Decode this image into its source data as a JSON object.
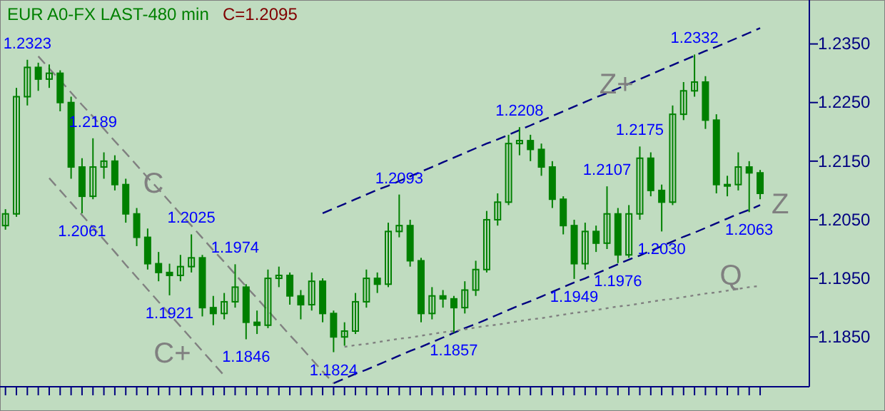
{
  "chart_data": {
    "type": "candlestick",
    "title": "EUR A0-FX LAST-480 min",
    "subtitle": "C=1.2095",
    "categories": [
      null,
      null,
      null,
      null,
      null,
      null,
      null,
      null,
      null,
      null,
      null,
      null,
      null,
      null,
      null,
      null,
      null,
      null,
      null,
      null,
      null,
      null,
      null,
      null,
      null,
      null,
      null,
      null,
      null,
      null,
      null,
      null,
      null,
      null,
      null,
      null,
      null,
      null,
      null,
      null,
      null,
      null,
      null,
      null,
      null,
      null,
      null,
      null,
      null,
      null,
      null,
      null,
      null,
      null,
      null,
      null,
      null,
      null,
      null,
      null,
      null,
      null,
      null,
      null,
      null,
      null,
      null,
      null,
      null,
      null
    ],
    "color": "#008000",
    "ohlc": [
      [
        1.204,
        1.2068,
        1.2033,
        1.206
      ],
      [
        1.206,
        1.2275,
        1.2055,
        1.226
      ],
      [
        1.226,
        1.2323,
        1.2245,
        1.231
      ],
      [
        1.231,
        1.2318,
        1.227,
        1.229
      ],
      [
        1.229,
        1.2315,
        1.2275,
        1.23
      ],
      [
        1.23,
        1.2305,
        1.2235,
        1.225
      ],
      [
        1.225,
        1.226,
        1.212,
        1.214
      ],
      [
        1.214,
        1.2155,
        1.2061,
        1.209
      ],
      [
        1.209,
        1.2189,
        1.2085,
        1.214
      ],
      [
        1.214,
        1.2165,
        1.212,
        1.215
      ],
      [
        1.215,
        1.216,
        1.21,
        1.211
      ],
      [
        1.211,
        1.212,
        1.2045,
        1.206
      ],
      [
        1.206,
        1.207,
        1.2005,
        1.202
      ],
      [
        1.202,
        1.2035,
        1.1965,
        1.1975
      ],
      [
        1.1975,
        1.1995,
        1.1945,
        1.196
      ],
      [
        1.196,
        1.1975,
        1.1921,
        1.1955
      ],
      [
        1.1955,
        1.199,
        1.1945,
        1.197
      ],
      [
        1.197,
        1.2025,
        1.196,
        1.1985
      ],
      [
        1.1985,
        1.199,
        1.1885,
        1.19
      ],
      [
        1.19,
        1.192,
        1.187,
        1.189
      ],
      [
        1.189,
        1.1925,
        1.188,
        1.191
      ],
      [
        1.191,
        1.1974,
        1.19,
        1.1935
      ],
      [
        1.1935,
        1.194,
        1.1846,
        1.1875
      ],
      [
        1.1875,
        1.1895,
        1.1855,
        1.187
      ],
      [
        1.187,
        1.1965,
        1.1865,
        1.195
      ],
      [
        1.195,
        1.197,
        1.1935,
        1.1955
      ],
      [
        1.1955,
        1.196,
        1.1905,
        1.192
      ],
      [
        1.192,
        1.193,
        1.188,
        1.1905
      ],
      [
        1.1905,
        1.196,
        1.1895,
        1.1945
      ],
      [
        1.1945,
        1.195,
        1.1875,
        1.189
      ],
      [
        1.189,
        1.1895,
        1.1824,
        1.185
      ],
      [
        1.185,
        1.1875,
        1.1835,
        1.186
      ],
      [
        1.186,
        1.1925,
        1.1855,
        1.191
      ],
      [
        1.191,
        1.1965,
        1.19,
        1.195
      ],
      [
        1.195,
        1.196,
        1.1925,
        1.194
      ],
      [
        1.194,
        1.2045,
        1.1935,
        1.203
      ],
      [
        1.203,
        1.2093,
        1.202,
        1.204
      ],
      [
        1.204,
        1.205,
        1.197,
        1.198
      ],
      [
        1.198,
        1.1985,
        1.1875,
        1.189
      ],
      [
        1.189,
        1.1935,
        1.188,
        1.192
      ],
      [
        1.192,
        1.193,
        1.19,
        1.1915
      ],
      [
        1.1915,
        1.192,
        1.1857,
        1.19
      ],
      [
        1.19,
        1.1945,
        1.189,
        1.193
      ],
      [
        1.193,
        1.198,
        1.192,
        1.1965
      ],
      [
        1.1965,
        1.2065,
        1.196,
        1.205
      ],
      [
        1.205,
        1.2095,
        1.204,
        1.208
      ],
      [
        1.208,
        1.2195,
        1.2075,
        1.218
      ],
      [
        1.218,
        1.2208,
        1.216,
        1.2185
      ],
      [
        1.2185,
        1.2195,
        1.215,
        1.217
      ],
      [
        1.217,
        1.218,
        1.2125,
        1.214
      ],
      [
        1.214,
        1.215,
        1.207,
        1.2085
      ],
      [
        1.2085,
        1.209,
        1.2025,
        1.204
      ],
      [
        1.204,
        1.205,
        1.1949,
        1.1975
      ],
      [
        1.1975,
        1.2045,
        1.1965,
        1.203
      ],
      [
        1.203,
        1.204,
        1.1995,
        1.201
      ],
      [
        1.201,
        1.2107,
        1.2,
        1.206
      ],
      [
        1.206,
        1.207,
        1.1976,
        1.199
      ],
      [
        1.199,
        1.2075,
        1.1985,
        1.206
      ],
      [
        1.206,
        1.2175,
        1.205,
        1.2155
      ],
      [
        1.2155,
        1.2165,
        1.209,
        1.21
      ],
      [
        1.21,
        1.211,
        1.203,
        1.208
      ],
      [
        1.208,
        1.2245,
        1.2075,
        1.223
      ],
      [
        1.223,
        1.2285,
        1.222,
        1.227
      ],
      [
        1.227,
        1.2332,
        1.226,
        1.2285
      ],
      [
        1.2285,
        1.2295,
        1.2205,
        1.222
      ],
      [
        1.222,
        1.223,
        1.2095,
        1.211
      ],
      [
        1.211,
        1.2125,
        1.209,
        1.211
      ],
      [
        1.211,
        1.2165,
        1.21,
        1.214
      ],
      [
        1.214,
        1.215,
        1.2063,
        1.213
      ],
      [
        1.213,
        1.2135,
        1.2085,
        1.2095
      ]
    ],
    "series": [
      {
        "type": "line",
        "name": "Z+",
        "color": "#000080",
        "line_style": "dashed",
        "values": [
          null,
          null,
          null,
          null,
          null,
          null,
          null,
          null,
          null,
          null,
          null,
          null,
          null,
          null,
          null,
          null,
          null,
          null,
          null,
          null,
          null,
          null,
          null,
          null,
          null,
          null,
          null,
          null,
          null,
          1.2061,
          1.2069,
          1.2077,
          1.2085,
          1.2093,
          1.2101,
          1.2108,
          1.2116,
          1.2124,
          1.2132,
          1.214,
          1.2148,
          1.2156,
          1.2164,
          1.2172,
          1.218,
          1.2187,
          1.2195,
          1.2203,
          1.2211,
          1.2219,
          1.2227,
          1.2235,
          1.2243,
          1.2251,
          1.2259,
          1.2266,
          1.2274,
          1.2282,
          1.229,
          1.2298,
          1.2306,
          1.2314,
          1.2322,
          1.233,
          1.2338,
          1.2345,
          1.2353,
          1.2361,
          1.2369,
          1.2377
        ]
      },
      {
        "type": "line",
        "name": "Z",
        "color": "#000080",
        "line_style": "dashed",
        "values": [
          null,
          null,
          null,
          null,
          null,
          null,
          null,
          null,
          null,
          null,
          null,
          null,
          null,
          null,
          null,
          null,
          null,
          null,
          null,
          null,
          null,
          null,
          null,
          null,
          null,
          null,
          null,
          null,
          null,
          null,
          1.1771,
          1.1779,
          1.1787,
          1.1794,
          1.1802,
          1.181,
          1.1818,
          1.1826,
          1.1833,
          1.1841,
          1.1849,
          1.1857,
          1.1865,
          1.1872,
          1.188,
          1.1888,
          1.1896,
          1.1904,
          1.1911,
          1.1919,
          1.1927,
          1.1935,
          1.1943,
          1.195,
          1.1958,
          1.1966,
          1.1974,
          1.1982,
          1.1989,
          1.1997,
          1.2005,
          1.2013,
          1.2021,
          1.2028,
          1.2036,
          1.2044,
          1.2052,
          1.206,
          1.2067,
          1.2075
        ]
      },
      {
        "type": "line",
        "name": "Q",
        "color": "#808080",
        "line_style": "dotted",
        "values": [
          null,
          null,
          null,
          null,
          null,
          null,
          null,
          null,
          null,
          null,
          null,
          null,
          null,
          null,
          null,
          null,
          null,
          null,
          null,
          null,
          null,
          null,
          null,
          null,
          null,
          null,
          null,
          null,
          null,
          null,
          null,
          1.1833,
          1.1836,
          1.1838,
          1.1841,
          1.1844,
          1.1847,
          1.1849,
          1.1852,
          1.1855,
          1.1858,
          1.186,
          1.1863,
          1.1866,
          1.1869,
          1.1871,
          1.1874,
          1.1877,
          1.188,
          1.1882,
          1.1885,
          1.1888,
          1.1891,
          1.1893,
          1.1896,
          1.1899,
          1.1902,
          1.1904,
          1.1907,
          1.191,
          1.1913,
          1.1915,
          1.1918,
          1.1921,
          1.1924,
          1.1926,
          1.1929,
          1.1932,
          1.1935,
          1.1937
        ]
      },
      {
        "type": "line",
        "name": "C",
        "color": "#808080",
        "line_style": "dashed",
        "values": [
          null,
          null,
          null,
          1.2329,
          1.2308,
          1.2288,
          1.2267,
          1.2246,
          1.2226,
          1.2205,
          1.2184,
          1.2164,
          1.2143,
          1.2122,
          1.2102,
          1.2081,
          1.206,
          1.204,
          1.2019,
          1.1998,
          1.1978,
          1.1957,
          1.1936,
          1.1916,
          1.1895,
          1.1874,
          1.1853,
          1.1833,
          1.1812,
          1.1791,
          1.1771,
          null,
          null,
          null,
          null,
          null,
          null,
          null,
          null,
          null,
          null,
          null,
          null,
          null,
          null,
          null,
          null,
          null,
          null,
          null,
          null,
          null,
          null,
          null,
          null,
          null,
          null,
          null,
          null,
          null,
          null,
          null,
          null,
          null,
          null,
          null,
          null,
          null,
          null,
          null
        ]
      },
      {
        "type": "line",
        "name": "C+",
        "color": "#808080",
        "line_style": "dashed",
        "values": [
          null,
          null,
          null,
          null,
          1.2121,
          1.21,
          1.2079,
          1.2058,
          1.2037,
          1.2016,
          1.1995,
          1.1973,
          1.1952,
          1.1931,
          1.191,
          1.1889,
          1.1868,
          1.1847,
          1.1826,
          1.1805,
          1.1784,
          null,
          null,
          null,
          null,
          null,
          null,
          null,
          null,
          null,
          null,
          null,
          null,
          null,
          null,
          null,
          null,
          null,
          null,
          null,
          null,
          null,
          null,
          null,
          null,
          null,
          null,
          null,
          null,
          null,
          null,
          null,
          null,
          null,
          null,
          null,
          null,
          null,
          null,
          null,
          null,
          null,
          null,
          null,
          null,
          null,
          null,
          null,
          null,
          null
        ]
      }
    ],
    "annotations": [
      {
        "text": "1.2323",
        "y": 1.2323
      },
      {
        "text": "1.2189",
        "y": 1.2189
      },
      {
        "text": "1.2061",
        "y": 1.2061
      },
      {
        "text": "1.2025",
        "y": 1.2025
      },
      {
        "text": "1.1921",
        "y": 1.1921
      },
      {
        "text": "1.1974",
        "y": 1.1974
      },
      {
        "text": "1.1846",
        "y": 1.1846
      },
      {
        "text": "1.1824",
        "y": 1.1824
      },
      {
        "text": "1.2093",
        "y": 1.2093
      },
      {
        "text": "1.1857",
        "y": 1.1857
      },
      {
        "text": "1.2208",
        "y": 1.2208
      },
      {
        "text": "1.1949",
        "y": 1.1949
      },
      {
        "text": "1.2107",
        "y": 1.2107
      },
      {
        "text": "1.1976",
        "y": 1.1976
      },
      {
        "text": "1.2175",
        "y": 1.2175
      },
      {
        "text": "1.2030",
        "y": 1.203
      },
      {
        "text": "1.2332",
        "y": 1.2332
      },
      {
        "text": "1.2063",
        "y": 1.2063
      }
    ],
    "ylim": [
      1.1765,
      1.2425
    ],
    "yticks": [
      {
        "value": 1.185,
        "label": "1.1850"
      },
      {
        "value": 1.195,
        "label": "1.1950"
      },
      {
        "value": 1.205,
        "label": "1.2050"
      },
      {
        "value": 1.215,
        "label": "1.2150"
      },
      {
        "value": 1.225,
        "label": "1.2250"
      },
      {
        "value": 1.235,
        "label": "1.2350"
      }
    ],
    "tick_labels": "y"
  }
}
